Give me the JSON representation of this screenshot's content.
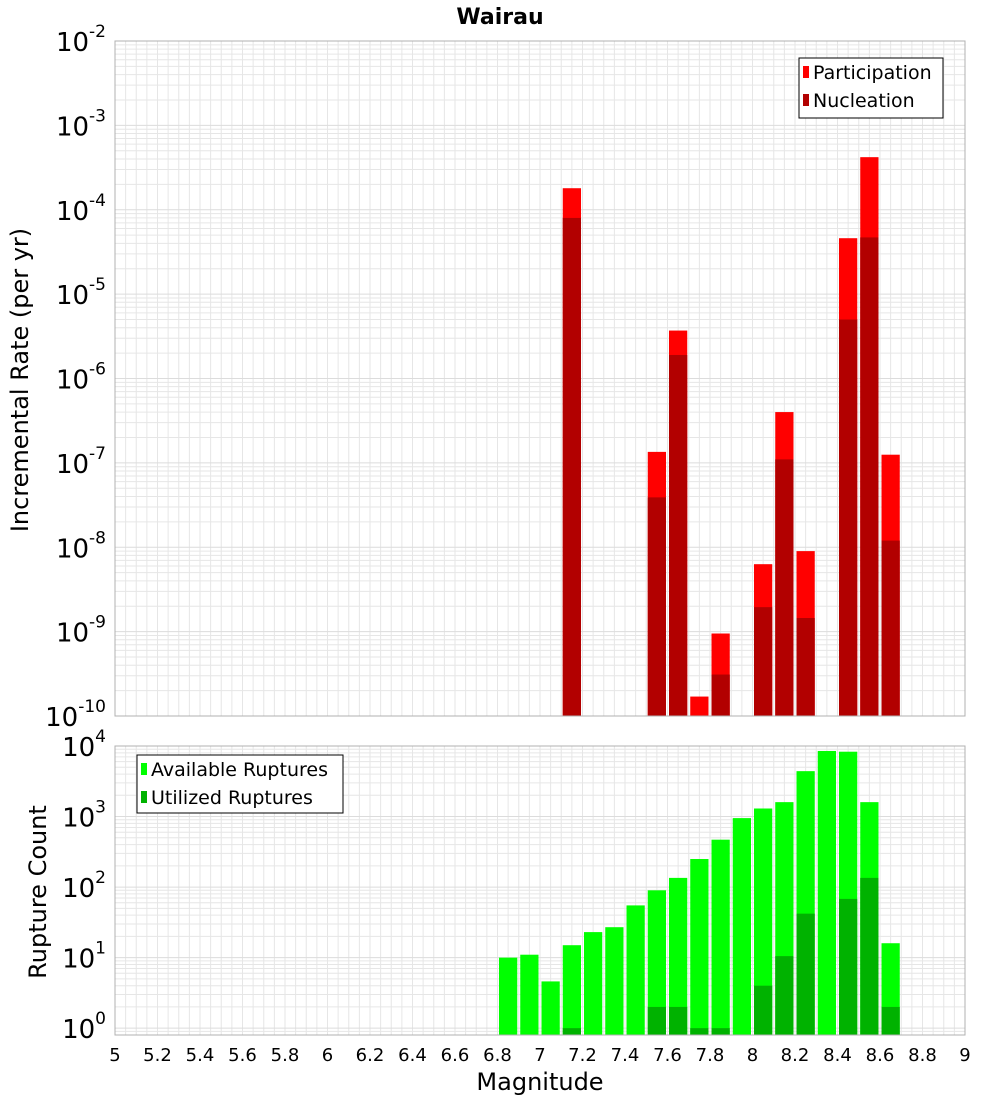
{
  "colors": {
    "participation": "#ff0000",
    "nucleation": "#b20000",
    "available": "#00ff00",
    "utilized": "#00b200",
    "grid": "#e6e6e6",
    "frame": "#b0b0b0"
  },
  "chart_data": {
    "title": "Wairau",
    "xlabel": "Magnitude",
    "xlim": [
      5,
      9
    ],
    "x_ticks": [
      5,
      5.2,
      5.4,
      5.6,
      5.8,
      6,
      6.2,
      6.4,
      6.6,
      6.8,
      7,
      7.2,
      7.4,
      7.6,
      7.8,
      8,
      8.2,
      8.4,
      8.6,
      8.8,
      9
    ],
    "x_tick_labels": [
      "5",
      "5.2",
      "5.4",
      "5.6",
      "5.8",
      "6",
      "6.2",
      "6.4",
      "6.6",
      "6.8",
      "7",
      "7.2",
      "7.4",
      "7.6",
      "7.8",
      "8",
      "8.2",
      "8.4",
      "8.6",
      "8.8",
      "9"
    ],
    "bin_width": 0.1,
    "grid": true,
    "panels": [
      {
        "type": "bar",
        "scale": "log",
        "ylabel": "Incremental Rate (per yr)",
        "ylim": [
          1e-10,
          0.01
        ],
        "y_tick_exponents": [
          "-2",
          "-3",
          "-4",
          "-5",
          "-6",
          "-7",
          "-8",
          "-9",
          "-10"
        ],
        "y_tick_base": "10",
        "legend_position": "top-right",
        "series": [
          {
            "name": "Participation",
            "color_key": "participation",
            "x": [
              7.15,
              7.55,
              7.65,
              7.75,
              7.85,
              8.05,
              8.15,
              8.25,
              8.45,
              8.55,
              8.65
            ],
            "values": [
              0.00018,
              1.35e-07,
              3.7e-06,
              1.7e-10,
              9.5e-10,
              6.3e-09,
              4e-07,
              9e-09,
              4.6e-05,
              0.00042,
              1.25e-07
            ]
          },
          {
            "name": "Nucleation",
            "color_key": "nucleation",
            "x": [
              7.15,
              7.55,
              7.65,
              7.85,
              8.05,
              8.15,
              8.25,
              8.45,
              8.55,
              8.65
            ],
            "values": [
              8e-05,
              3.9e-08,
              1.9e-06,
              3.1e-10,
              1.95e-09,
              1.1e-07,
              1.45e-09,
              5e-06,
              4.7e-05,
              1.2e-08
            ]
          }
        ]
      },
      {
        "type": "bar",
        "scale": "log",
        "ylabel": "Rupture Count",
        "ylim": [
          0.8,
          10000
        ],
        "y_tick_exponents": [
          "4",
          "3",
          "2",
          "1",
          "0"
        ],
        "y_tick_base": "10",
        "legend_position": "top-left",
        "series": [
          {
            "name": "Available Ruptures",
            "color_key": "available",
            "x": [
              6.85,
              6.95,
              7.05,
              7.15,
              7.25,
              7.35,
              7.45,
              7.55,
              7.65,
              7.75,
              7.85,
              7.95,
              8.05,
              8.15,
              8.25,
              8.35,
              8.45,
              8.55,
              8.65
            ],
            "values": [
              10,
              11,
              4.6,
              15,
              23,
              27,
              55,
              90,
              135,
              250,
              470,
              950,
              1300,
              1600,
              4400,
              8500,
              8300,
              1600,
              16
            ]
          },
          {
            "name": "Utilized Ruptures",
            "color_key": "utilized",
            "x": [
              7.15,
              7.55,
              7.65,
              7.75,
              7.85,
              8.05,
              8.15,
              8.25,
              8.45,
              8.55,
              8.65
            ],
            "values": [
              1,
              2,
              2,
              1,
              1,
              4,
              10.5,
              42,
              68,
              135,
              2
            ]
          }
        ]
      }
    ]
  }
}
